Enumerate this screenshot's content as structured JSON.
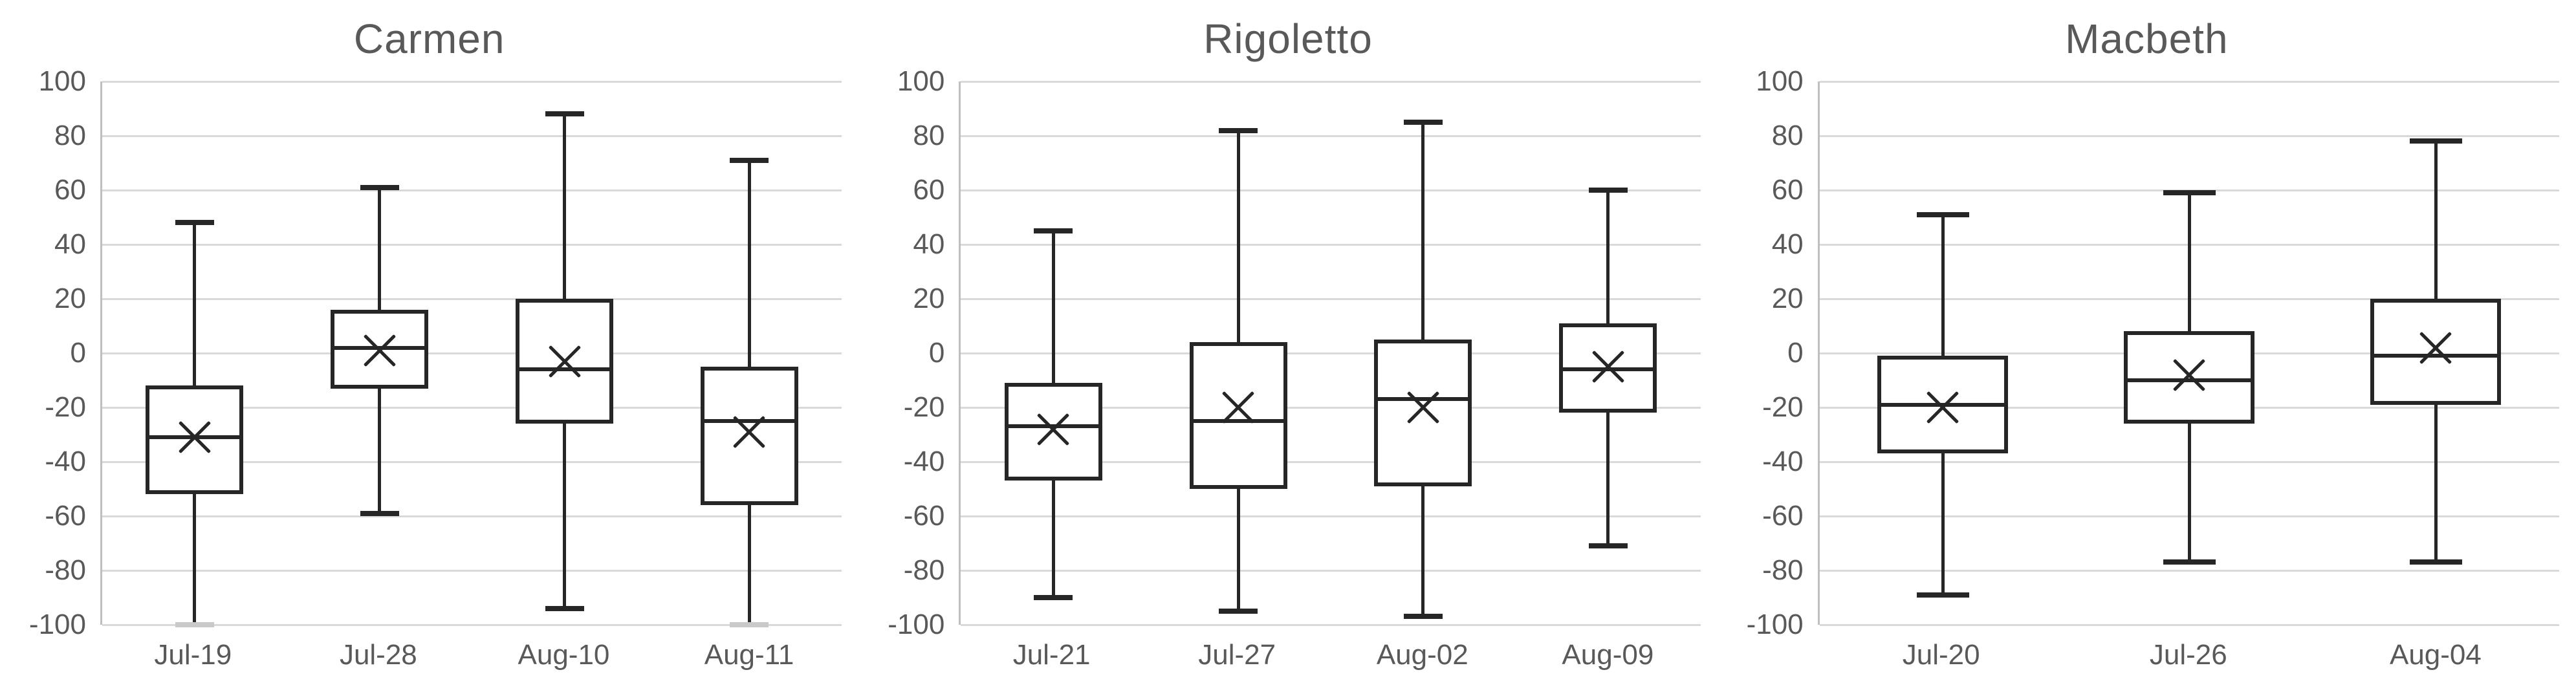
{
  "colors": {
    "text": "#595959",
    "gridline": "#d9d9d9",
    "axis_line": "#bfbfbf",
    "box_line": "#262626",
    "axis_cap": "#c9c9c9",
    "background": "#ffffff"
  },
  "axis": {
    "y_min": -100,
    "y_max": 100,
    "y_step": 20,
    "ticks": [
      100,
      80,
      60,
      40,
      20,
      0,
      -20,
      -40,
      -60,
      -80,
      -100
    ],
    "tick_labels": [
      "100",
      "80",
      "60",
      "40",
      "20",
      "0",
      "-20",
      "-40",
      "-60",
      "-80",
      "-100"
    ]
  },
  "chart_data": [
    {
      "type": "boxplot",
      "title": "Carmen",
      "categories": [
        "Jul-19",
        "Jul-28",
        "Aug-10",
        "Aug-11"
      ],
      "ylim": [
        -100,
        100
      ],
      "grid": true,
      "legend": false,
      "series": [
        {
          "category": "Jul-19",
          "whisker_low": -100,
          "q1": -52,
          "median": -31,
          "mean": -31,
          "q3": -12,
          "whisker_high": 48,
          "low_cap_on_axis": true
        },
        {
          "category": "Jul-28",
          "whisker_low": -59,
          "q1": -13,
          "median": 2,
          "mean": 1,
          "q3": 16,
          "whisker_high": 61,
          "low_cap_on_axis": false
        },
        {
          "category": "Aug-10",
          "whisker_low": -94,
          "q1": -26,
          "median": -6,
          "mean": -3,
          "q3": 20,
          "whisker_high": 88,
          "low_cap_on_axis": false
        },
        {
          "category": "Aug-11",
          "whisker_low": -100,
          "q1": -56,
          "median": -25,
          "mean": -29,
          "q3": -5,
          "whisker_high": 71,
          "low_cap_on_axis": true
        }
      ]
    },
    {
      "type": "boxplot",
      "title": "Rigoletto",
      "categories": [
        "Jul-21",
        "Jul-27",
        "Aug-02",
        "Aug-09"
      ],
      "ylim": [
        -100,
        100
      ],
      "grid": true,
      "legend": false,
      "series": [
        {
          "category": "Jul-21",
          "whisker_low": -90,
          "q1": -47,
          "median": -27,
          "mean": -28,
          "q3": -11,
          "whisker_high": 45,
          "low_cap_on_axis": false
        },
        {
          "category": "Jul-27",
          "whisker_low": -95,
          "q1": -50,
          "median": -25,
          "mean": -20,
          "q3": 4,
          "whisker_high": 82,
          "low_cap_on_axis": false
        },
        {
          "category": "Aug-02",
          "whisker_low": -97,
          "q1": -49,
          "median": -17,
          "mean": -20,
          "q3": 5,
          "whisker_high": 85,
          "low_cap_on_axis": false
        },
        {
          "category": "Aug-09",
          "whisker_low": -71,
          "q1": -22,
          "median": -6,
          "mean": -5,
          "q3": 11,
          "whisker_high": 60,
          "low_cap_on_axis": false
        }
      ]
    },
    {
      "type": "boxplot",
      "title": "Macbeth",
      "categories": [
        "Jul-20",
        "Jul-26",
        "Aug-04"
      ],
      "ylim": [
        -100,
        100
      ],
      "grid": true,
      "legend": false,
      "series": [
        {
          "category": "Jul-20",
          "whisker_low": -89,
          "q1": -37,
          "median": -19,
          "mean": -20,
          "q3": -1,
          "whisker_high": 51,
          "low_cap_on_axis": false
        },
        {
          "category": "Jul-26",
          "whisker_low": -77,
          "q1": -26,
          "median": -10,
          "mean": -8,
          "q3": 8,
          "whisker_high": 59,
          "low_cap_on_axis": false
        },
        {
          "category": "Aug-04",
          "whisker_low": -77,
          "q1": -19,
          "median": -1,
          "mean": 2,
          "q3": 20,
          "whisker_high": 78,
          "low_cap_on_axis": false
        }
      ]
    }
  ]
}
